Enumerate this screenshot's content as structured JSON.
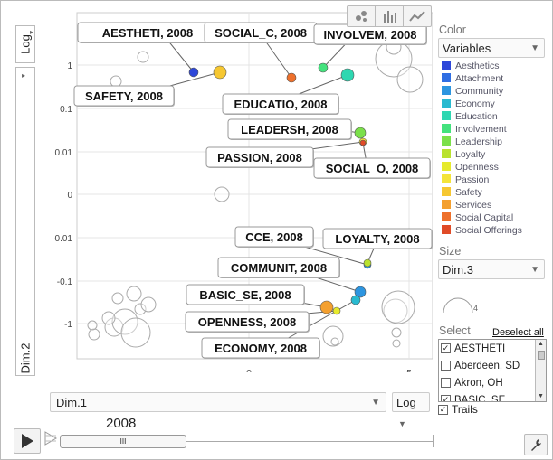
{
  "chart_data": {
    "type": "scatter",
    "subtype": "motion-bubble",
    "y_axis_label": "Dim.2",
    "x_axis_label": "Dim.1",
    "y_scale": "Log",
    "x_scale": "Log",
    "x_ticks": [
      "0",
      "5"
    ],
    "y_ticks": [
      "1",
      "0.1",
      "0.01",
      "0",
      "-0.01",
      "-0.1",
      "-1"
    ],
    "time": "2008",
    "labeled_points": [
      {
        "label": "AESTHETI, 2008",
        "category": "Aesthetics"
      },
      {
        "label": "SAFETY, 2008",
        "category": "Safety"
      },
      {
        "label": "SOCIAL_C, 2008",
        "category": "Social Capital"
      },
      {
        "label": "INVOLVEM, 2008",
        "category": "Involvement"
      },
      {
        "label": "EDUCATIO, 2008",
        "category": "Education"
      },
      {
        "label": "LEADERSH, 2008",
        "category": "Leadership"
      },
      {
        "label": "PASSION, 2008",
        "category": "Passion"
      },
      {
        "label": "SOCIAL_O, 2008",
        "category": "Social Offerings"
      },
      {
        "label": "CCE, 2008",
        "category": "Community"
      },
      {
        "label": "LOYALTY, 2008",
        "category": "Loyalty"
      },
      {
        "label": "COMMUNIT, 2008",
        "category": "Community"
      },
      {
        "label": "BASIC_SE, 2008",
        "category": "Services"
      },
      {
        "label": "OPENNESS, 2008",
        "category": "Openness"
      },
      {
        "label": "ECONOMY, 2008",
        "category": "Economy"
      }
    ]
  },
  "controls": {
    "color_title": "Color",
    "color_value": "Variables",
    "legend": [
      {
        "name": "Aesthetics",
        "color": "#2d47d9"
      },
      {
        "name": "Attachment",
        "color": "#2f6ee3"
      },
      {
        "name": "Community",
        "color": "#2d95e0"
      },
      {
        "name": "Economy",
        "color": "#29bad0"
      },
      {
        "name": "Education",
        "color": "#2ed7b1"
      },
      {
        "name": "Involvement",
        "color": "#43e27d"
      },
      {
        "name": "Leadership",
        "color": "#7be04a"
      },
      {
        "name": "Loyalty",
        "color": "#b9e22e"
      },
      {
        "name": "Openness",
        "color": "#e6ea2d"
      },
      {
        "name": "Passion",
        "color": "#f4e43a"
      },
      {
        "name": "Safety",
        "color": "#f6c731"
      },
      {
        "name": "Services",
        "color": "#f4a02f"
      },
      {
        "name": "Social Capital",
        "color": "#ee702b"
      },
      {
        "name": "Social Offerings",
        "color": "#e04b27"
      }
    ],
    "size_title": "Size",
    "size_value": "Dim.3",
    "size_tick": "4",
    "select_title": "Select",
    "deselect_label": "Deselect all",
    "select_items": [
      {
        "label": "AESTHETI",
        "checked": true
      },
      {
        "label": "Aberdeen, SD",
        "checked": false
      },
      {
        "label": "Akron, OH",
        "checked": false
      },
      {
        "label": "BASIC_SE",
        "checked": true
      }
    ],
    "trails_label": "Trails",
    "year": "2008",
    "slider_thumb": "III"
  }
}
